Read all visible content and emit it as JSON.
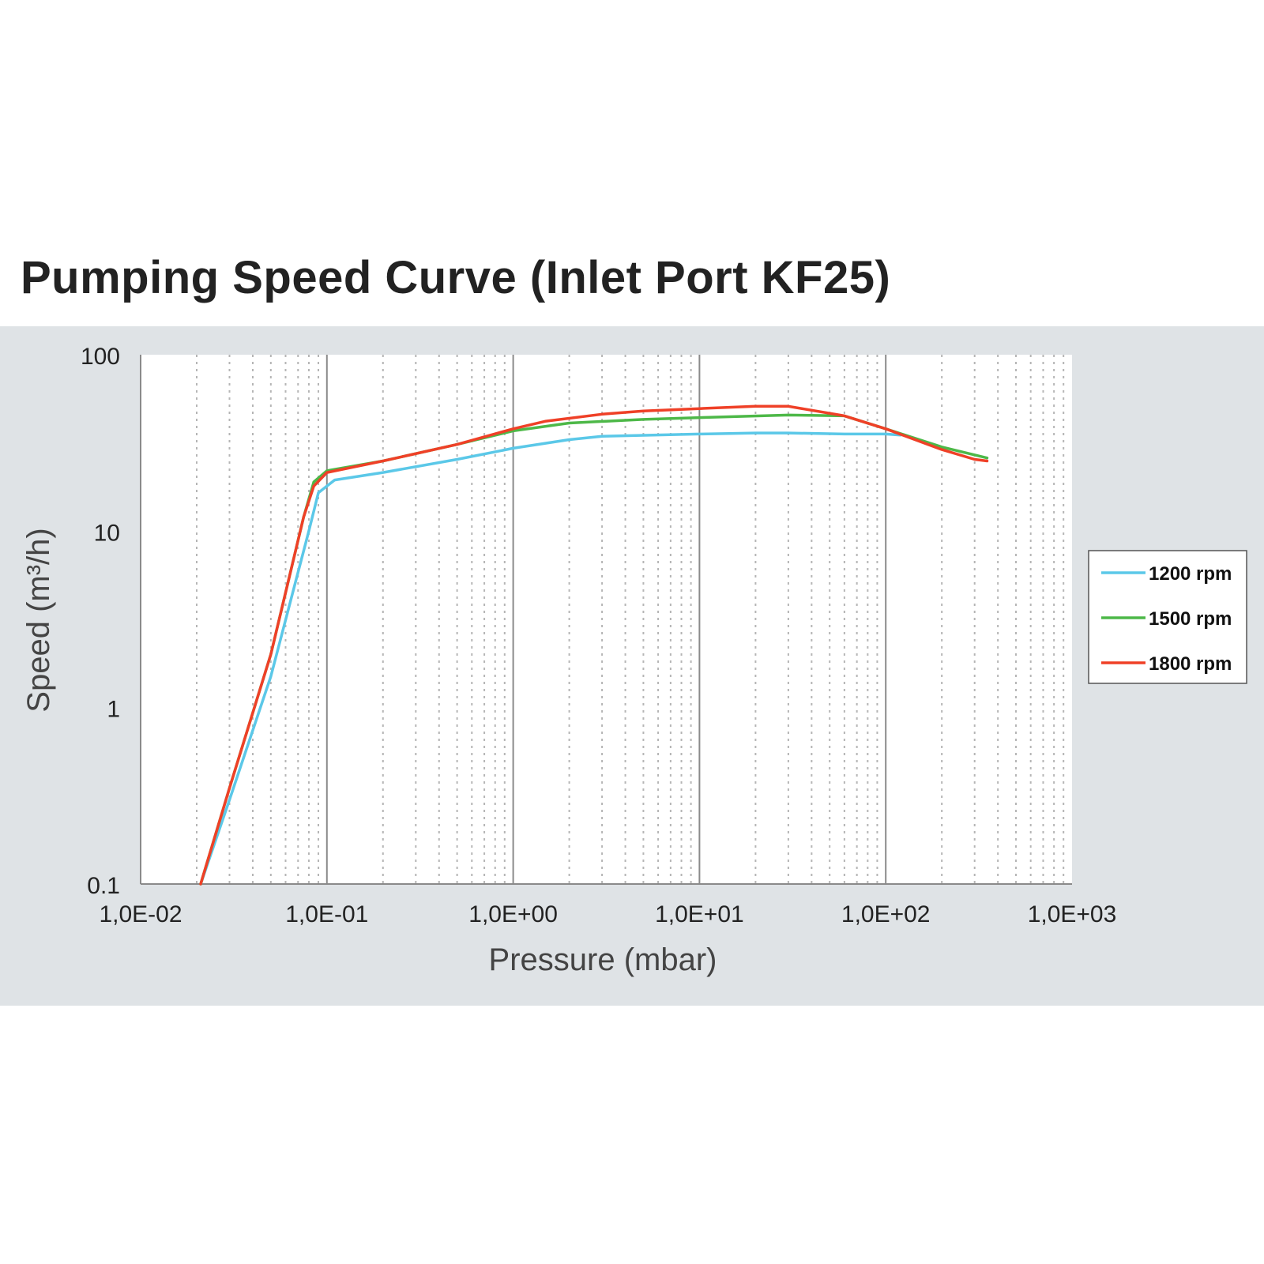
{
  "chart_data": {
    "type": "line",
    "title": "Pumping Speed Curve (Inlet Port KF25)",
    "xlabel": "Pressure (mbar)",
    "ylabel": "Speed (m³/h)",
    "x_scale": "log",
    "y_scale": "log",
    "xlim": [
      0.01,
      1000
    ],
    "ylim": [
      0.1,
      100
    ],
    "x_ticks": [
      0.01,
      0.1,
      1,
      10,
      100,
      1000
    ],
    "x_tick_labels": [
      "1,0E-02",
      "1,0E-01",
      "1,0E+00",
      "1,0E+01",
      "1,0E+02",
      "1,0E+03"
    ],
    "y_ticks": [
      0.1,
      1,
      10,
      100
    ],
    "y_tick_labels": [
      "0.1",
      "1",
      "10",
      "100"
    ],
    "grid": true,
    "legend_position": "right",
    "series": [
      {
        "name": "1200 rpm",
        "color": "#5bc8e8",
        "points": [
          [
            0.021,
            0.1
          ],
          [
            0.03,
            0.3
          ],
          [
            0.05,
            1.5
          ],
          [
            0.08,
            10
          ],
          [
            0.09,
            16.5
          ],
          [
            0.11,
            19.5
          ],
          [
            0.2,
            21.5
          ],
          [
            0.5,
            25.5
          ],
          [
            1,
            29.5
          ],
          [
            2,
            33
          ],
          [
            3,
            34.5
          ],
          [
            10,
            35.5
          ],
          [
            20,
            36
          ],
          [
            30,
            36
          ],
          [
            60,
            35.5
          ],
          [
            100,
            35.5
          ],
          [
            120,
            35
          ]
        ]
      },
      {
        "name": "1500 rpm",
        "color": "#4db848",
        "points": [
          [
            0.021,
            0.1
          ],
          [
            0.03,
            0.35
          ],
          [
            0.05,
            2
          ],
          [
            0.075,
            12
          ],
          [
            0.085,
            19
          ],
          [
            0.1,
            22
          ],
          [
            0.2,
            25
          ],
          [
            0.5,
            31
          ],
          [
            1,
            37
          ],
          [
            2,
            41
          ],
          [
            5,
            43
          ],
          [
            10,
            44
          ],
          [
            30,
            45.5
          ],
          [
            60,
            45
          ],
          [
            100,
            38
          ],
          [
            200,
            30
          ],
          [
            350,
            26
          ]
        ]
      },
      {
        "name": "1800 rpm",
        "color": "#ef4027",
        "points": [
          [
            0.021,
            0.1
          ],
          [
            0.03,
            0.35
          ],
          [
            0.05,
            2
          ],
          [
            0.075,
            12
          ],
          [
            0.085,
            18
          ],
          [
            0.1,
            21.5
          ],
          [
            0.2,
            25
          ],
          [
            0.5,
            31
          ],
          [
            1,
            38
          ],
          [
            1.5,
            42
          ],
          [
            3,
            46
          ],
          [
            5,
            48
          ],
          [
            10,
            49.5
          ],
          [
            20,
            51
          ],
          [
            30,
            51
          ],
          [
            60,
            45
          ],
          [
            100,
            38
          ],
          [
            200,
            29
          ],
          [
            300,
            25.5
          ],
          [
            350,
            25
          ]
        ]
      }
    ]
  }
}
